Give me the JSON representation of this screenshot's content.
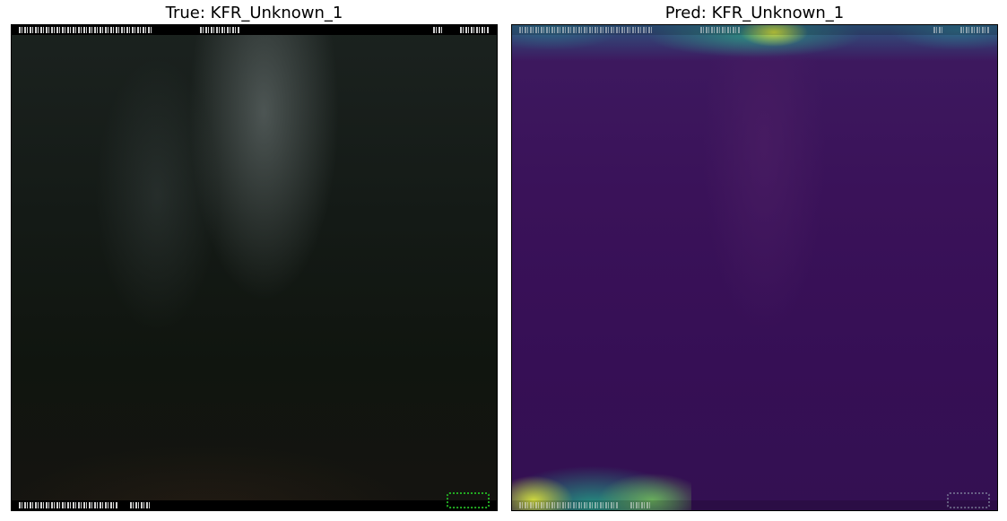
{
  "left_panel": {
    "title": "True: KFR_Unknown_1",
    "image": "trail-camera-night-photo"
  },
  "right_panel": {
    "title": "Pred: KFR_Unknown_1",
    "image": "attention-heatmap-overlay"
  },
  "colors": {
    "heatmap_low": "#3a1259",
    "heatmap_mid": "#2aa087",
    "heatmap_high": "#dde33c",
    "camera_logo": "#22aa22"
  }
}
